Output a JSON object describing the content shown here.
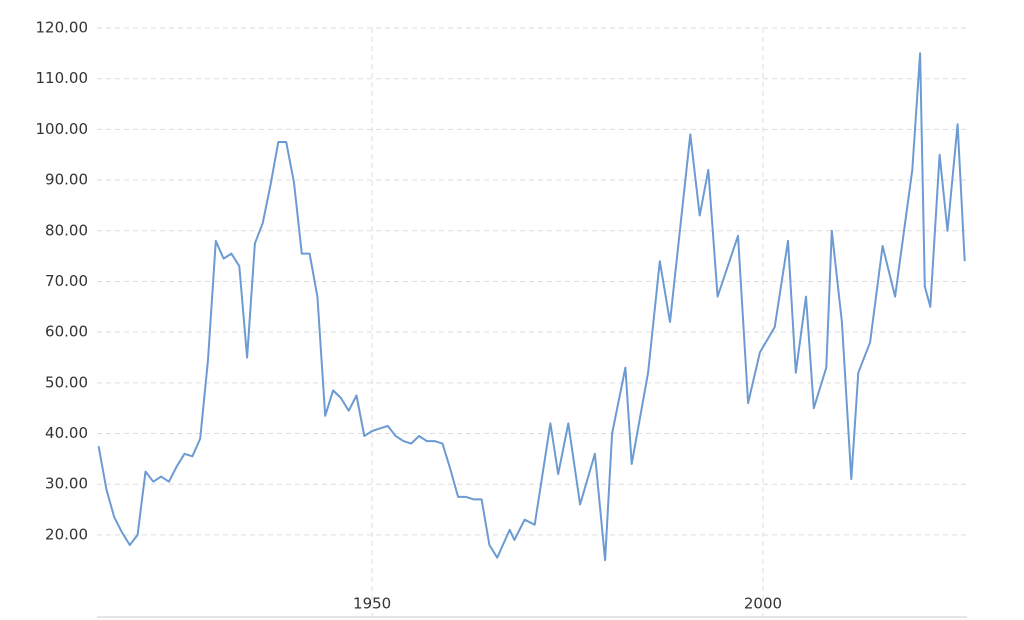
{
  "chart_data": {
    "type": "line",
    "x": [
      1915,
      1916,
      1917,
      1918,
      1919,
      1920,
      1921,
      1922,
      1923,
      1924,
      1925,
      1926,
      1927,
      1928,
      1929,
      1930,
      1931,
      1932,
      1933,
      1934,
      1935,
      1936,
      1937,
      1938,
      1939,
      1940,
      1941,
      1942,
      1943,
      1944,
      1945,
      1946,
      1947,
      1948,
      1949,
      1950,
      1951,
      1952,
      1953,
      1954,
      1955,
      1956,
      1957,
      1958,
      1959,
      1960,
      1961,
      1962,
      1963,
      1964,
      1965,
      1966,
      1967.6,
      1968.2,
      1969.5,
      1970.8,
      1972.8,
      1973.8,
      1975.1,
      1976.6,
      1978.5,
      1979.8,
      1980.7,
      1982.4,
      1983.2,
      1985.3,
      1986.8,
      1988.1,
      1990.7,
      1991.9,
      1993,
      1994.2,
      1996.8,
      1998.1,
      1999.6,
      2001.5,
      2003.2,
      2004.2,
      2005.5,
      2006.5,
      2008.1,
      2008.8,
      2010.1,
      2011.3,
      2012.2,
      2013.7,
      2015.3,
      2016.9,
      2019.1,
      2020.1,
      2020.7,
      2021.4,
      2022.6,
      2023.6,
      2024.9,
      2025.8
    ],
    "series": [
      {
        "color": "#6b9bd2",
        "values": [
          37.5,
          29,
          23.5,
          20.5,
          18,
          20,
          32.5,
          30.5,
          31.5,
          30.5,
          33.5,
          36,
          35.5,
          39,
          54.5,
          78,
          74.5,
          75.5,
          73,
          55,
          77.5,
          81.5,
          89,
          97.5,
          97.5,
          89.5,
          75.5,
          75.5,
          67,
          43.5,
          48.5,
          47,
          44.5,
          47.5,
          39.5,
          40.5,
          41,
          41.5,
          39.5,
          38.5,
          38,
          39.5,
          38.5,
          38.5,
          38,
          33,
          27.5,
          27.5,
          27,
          27,
          18,
          15.5,
          21,
          19,
          23,
          22,
          42,
          32,
          42,
          26,
          36,
          15,
          40,
          53,
          34,
          52,
          74,
          62,
          99,
          83,
          92,
          67,
          79,
          46,
          56,
          61,
          78,
          52,
          67,
          45,
          53,
          80,
          62,
          31,
          52,
          58,
          77,
          67,
          92,
          115,
          69,
          65,
          95,
          80,
          101,
          74
        ]
      }
    ],
    "xlim": [
      1914.8,
      2026.1
    ],
    "xticks": [
      1950,
      2000
    ],
    "ylim": [
      3.8,
      120
    ],
    "yticks": [
      {
        "value": 20,
        "label": "20.00"
      },
      {
        "value": 30,
        "label": "30.00"
      },
      {
        "value": 40,
        "label": "40.00"
      },
      {
        "value": 50,
        "label": "50.00"
      },
      {
        "value": 60,
        "label": "60.00"
      },
      {
        "value": 70,
        "label": "70.00"
      },
      {
        "value": 80,
        "label": "80.00"
      },
      {
        "value": 90,
        "label": "90.00"
      },
      {
        "value": 100,
        "label": "100.00"
      },
      {
        "value": 110,
        "label": "110.00"
      },
      {
        "value": 120,
        "label": "120.00"
      }
    ],
    "grid": true
  }
}
